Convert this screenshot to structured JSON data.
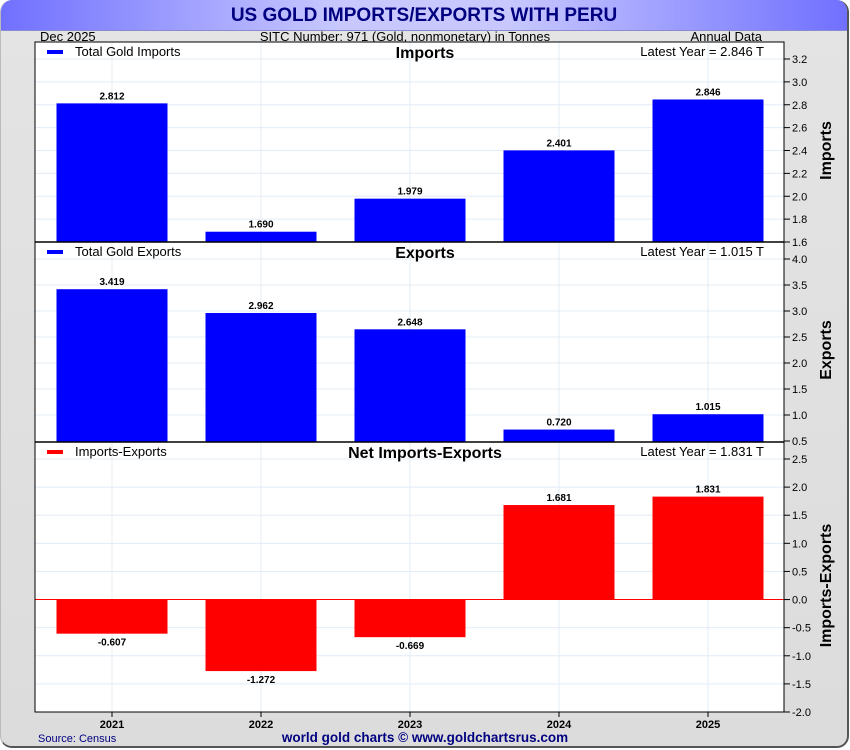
{
  "header": {
    "title": "US GOLD IMPORTS/EXPORTS WITH PERU",
    "date": "Dec  2025",
    "subtitle": "SITC Number: 971 (Gold, nonmonetary) in Tonnes",
    "frequency": "Annual Data"
  },
  "footer": {
    "source": "Source: Census",
    "credit": "world gold charts © www.goldchartsrus.com"
  },
  "colors": {
    "imports_bar": "#0000ff",
    "exports_bar": "#0000ff",
    "net_bar": "#ff0000",
    "gridline": "#e2ecf6",
    "zero_line": "#ff0000"
  },
  "chart_data": [
    {
      "type": "bar",
      "title": "Imports",
      "legend": "Total Gold Imports",
      "legend_position": "top-left",
      "latest": "Latest Year = 2.846 T",
      "ylabel": "Imports",
      "categories": [
        "2021",
        "2022",
        "2023",
        "2024",
        "2025"
      ],
      "values": [
        2.812,
        1.69,
        1.979,
        2.401,
        2.846
      ],
      "labels": [
        "2.812",
        "1.690",
        "1.979",
        "2.401",
        "2.846"
      ],
      "ylim": [
        1.6,
        3.3
      ],
      "yticks": [
        1.6,
        1.8,
        2.0,
        2.2,
        2.4,
        2.6,
        2.8,
        3.0,
        3.2
      ],
      "ytick_labels": [
        "1.6",
        "1.8",
        "2.0",
        "2.2",
        "2.4",
        "2.6",
        "2.8",
        "3.0",
        "3.2"
      ],
      "grid": true
    },
    {
      "type": "bar",
      "title": "Exports",
      "legend": "Total Gold Exports",
      "legend_position": "top-left",
      "latest": "Latest Year = 1.015 T",
      "ylabel": "Exports",
      "categories": [
        "2021",
        "2022",
        "2023",
        "2024",
        "2025"
      ],
      "values": [
        3.419,
        2.962,
        2.648,
        0.72,
        1.015
      ],
      "labels": [
        "3.419",
        "2.962",
        "2.648",
        "0.720",
        "1.015"
      ],
      "ylim": [
        0.5,
        4.15
      ],
      "yticks": [
        0.5,
        1.0,
        1.5,
        2.0,
        2.5,
        3.0,
        3.5,
        4.0
      ],
      "ytick_labels": [
        "0.5",
        "1.0",
        "1.5",
        "2.0",
        "2.5",
        "3.0",
        "3.5",
        "4.0"
      ],
      "grid": true
    },
    {
      "type": "bar",
      "title": "Net Imports-Exports",
      "legend": "Imports-Exports",
      "legend_position": "top-left",
      "latest": "Latest Year = 1.831 T",
      "ylabel": "Imports-Exports",
      "categories": [
        "2021",
        "2022",
        "2023",
        "2024",
        "2025"
      ],
      "values": [
        -0.607,
        -1.272,
        -0.669,
        1.681,
        1.831
      ],
      "labels": [
        "-0.607",
        "-1.272",
        "-0.669",
        "1.681",
        "1.831"
      ],
      "ylim": [
        -2.0,
        2.75
      ],
      "yticks": [
        -2.0,
        -1.5,
        -1.0,
        -0.5,
        0.0,
        0.5,
        1.0,
        1.5,
        2.0,
        2.5
      ],
      "ytick_labels": [
        "-2.0",
        "-1.5",
        "-1.0",
        "-0.5",
        "0.0",
        "0.5",
        "1.0",
        "1.5",
        "2.0",
        "2.5"
      ],
      "grid": true
    }
  ]
}
